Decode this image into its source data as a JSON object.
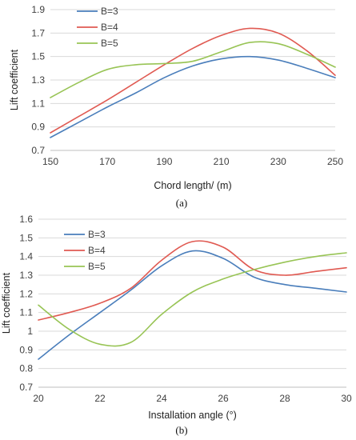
{
  "chart_data": [
    {
      "type": "line",
      "panel_label": "(a)",
      "xlabel": "Chord length/ (m)",
      "ylabel": "Lift coefficient",
      "xlim": [
        150,
        250
      ],
      "ylim": [
        0.7,
        1.9
      ],
      "xticks": [
        150,
        170,
        190,
        210,
        230,
        250
      ],
      "xtick_labels": [
        "150",
        "170",
        "190",
        "210",
        "230",
        "250"
      ],
      "yticks": [
        0.7,
        0.9,
        1.1,
        1.3,
        1.5,
        1.7,
        1.9
      ],
      "ytick_labels": [
        "0.7",
        "0.9",
        "1.1",
        "1.3",
        "1.5",
        "1.7",
        "1.9"
      ],
      "grid": "horizontal",
      "legend": "top-left",
      "series": [
        {
          "name": "B=3",
          "color": "#4a7ebb",
          "x": [
            150,
            160,
            170,
            180,
            190,
            200,
            210,
            220,
            230,
            240,
            250
          ],
          "y": [
            0.81,
            0.94,
            1.07,
            1.19,
            1.32,
            1.42,
            1.48,
            1.5,
            1.47,
            1.4,
            1.32
          ]
        },
        {
          "name": "B=4",
          "color": "#e05a52",
          "x": [
            150,
            160,
            170,
            180,
            190,
            200,
            210,
            220,
            230,
            240,
            250
          ],
          "y": [
            0.85,
            0.99,
            1.13,
            1.28,
            1.43,
            1.57,
            1.68,
            1.74,
            1.7,
            1.55,
            1.34
          ]
        },
        {
          "name": "B=5",
          "color": "#98c455",
          "x": [
            150,
            160,
            170,
            180,
            190,
            200,
            210,
            220,
            230,
            240,
            250
          ],
          "y": [
            1.15,
            1.28,
            1.39,
            1.43,
            1.44,
            1.46,
            1.54,
            1.62,
            1.61,
            1.52,
            1.41
          ]
        }
      ]
    },
    {
      "type": "line",
      "panel_label": "(b)",
      "xlabel": "Installation angle (°)",
      "ylabel": "Lift coefficient",
      "xlim": [
        20,
        30
      ],
      "ylim": [
        0.7,
        1.6
      ],
      "xticks": [
        20,
        22,
        24,
        26,
        28,
        30
      ],
      "xtick_labels": [
        "20",
        "22",
        "24",
        "26",
        "28",
        "30"
      ],
      "yticks": [
        0.7,
        0.8,
        0.9,
        1.0,
        1.1,
        1.2,
        1.3,
        1.4,
        1.5,
        1.6
      ],
      "ytick_labels": [
        "0.7",
        "0.8",
        "0.9",
        "1",
        "1.1",
        "1.2",
        "1.3",
        "1.4",
        "1.5",
        "1.6"
      ],
      "grid": "horizontal",
      "legend": "top-left",
      "series": [
        {
          "name": "B=3",
          "color": "#4a7ebb",
          "x": [
            20,
            21,
            22,
            23,
            24,
            25,
            26,
            27,
            28,
            29,
            30
          ],
          "y": [
            0.85,
            0.98,
            1.1,
            1.22,
            1.35,
            1.43,
            1.39,
            1.29,
            1.25,
            1.23,
            1.21
          ]
        },
        {
          "name": "B=4",
          "color": "#e05a52",
          "x": [
            20,
            21,
            22,
            23,
            24,
            25,
            26,
            27,
            28,
            29,
            30
          ],
          "y": [
            1.06,
            1.1,
            1.15,
            1.23,
            1.38,
            1.48,
            1.45,
            1.33,
            1.3,
            1.32,
            1.34
          ]
        },
        {
          "name": "B=5",
          "color": "#98c455",
          "x": [
            20,
            21,
            22,
            23,
            24,
            25,
            26,
            27,
            28,
            29,
            30
          ],
          "y": [
            1.14,
            1.01,
            0.93,
            0.94,
            1.09,
            1.21,
            1.28,
            1.33,
            1.37,
            1.4,
            1.42
          ]
        }
      ]
    }
  ]
}
